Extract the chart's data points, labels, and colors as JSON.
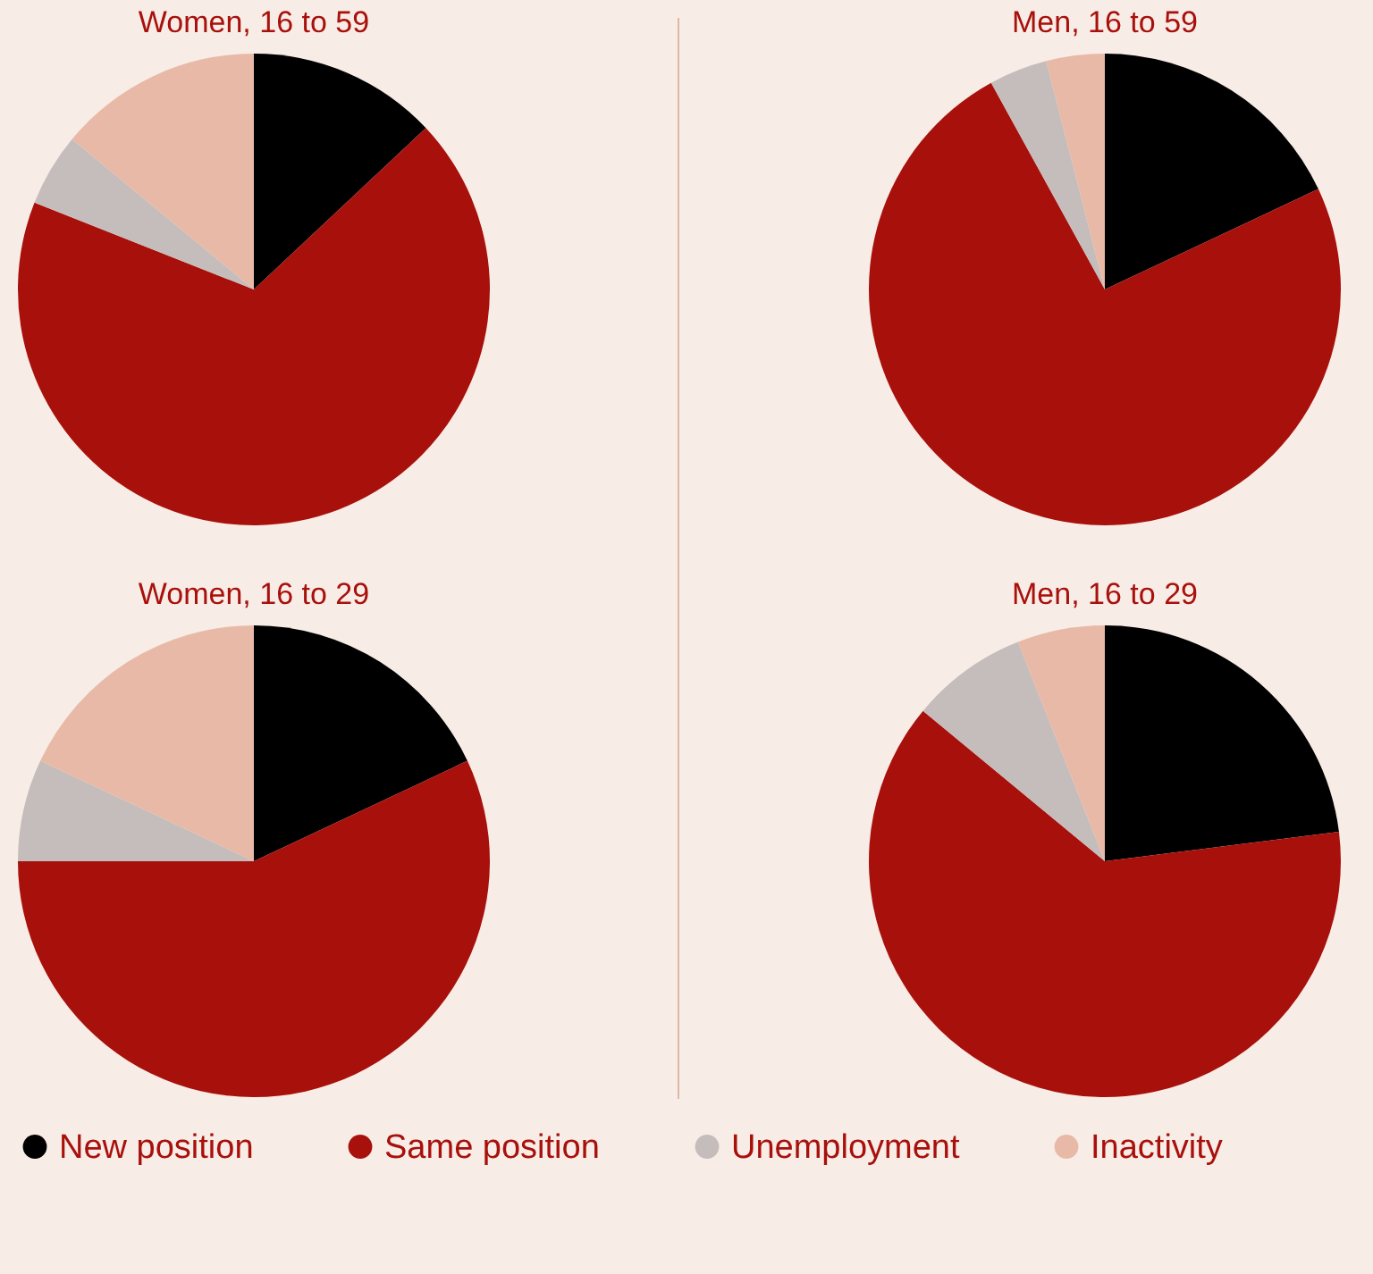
{
  "chart_data": {
    "type": "pie",
    "categories": [
      "New position",
      "Same position",
      "Unemployment",
      "Inactivity"
    ],
    "colors": [
      "#000000",
      "#a8100c",
      "#c5bdbb",
      "#e8b9a7"
    ],
    "legend": "bottom",
    "series": [
      {
        "name": "Women, 16 to 59",
        "values": [
          13,
          68,
          5,
          14
        ]
      },
      {
        "name": "Men, 16 to 59",
        "values": [
          18,
          74,
          4,
          4
        ]
      },
      {
        "name": "Women, 16 to 29",
        "values": [
          18,
          57,
          7,
          18
        ]
      },
      {
        "name": "Men, 16 to 29",
        "values": [
          23,
          63,
          8,
          6
        ]
      }
    ]
  }
}
